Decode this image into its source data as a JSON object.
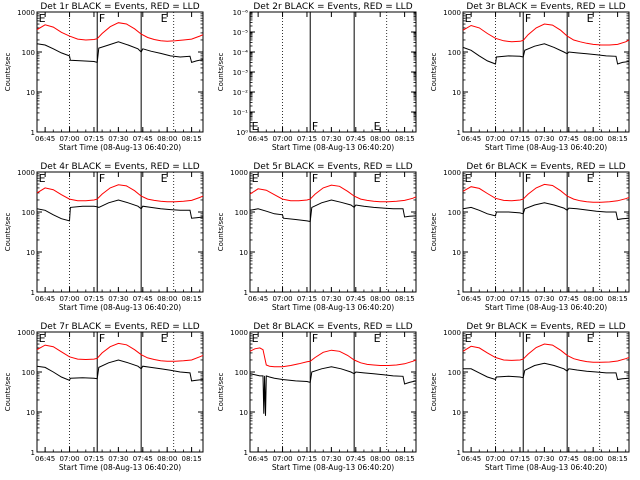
{
  "figure": {
    "xlabel_prefix": "Start Time",
    "start_time": "(08-Aug-13 06:40:20)",
    "x_ticks": [
      "06:45",
      "07:00",
      "07:15",
      "07:30",
      "07:45",
      "08:00",
      "08:15"
    ],
    "x_tick_minutes": [
      5,
      20,
      35,
      50,
      65,
      80,
      95
    ],
    "x_range_minutes": [
      0,
      102
    ],
    "ylabel": "Counts/sec",
    "dotted_minutes": [
      20,
      84
    ],
    "solid_minutes": [
      37,
      64
    ],
    "colors": {
      "events": "#000000",
      "lld": "#ff0000"
    }
  },
  "chart_data": [
    {
      "type": "line",
      "title": "Det 1r BLACK = Events, RED = LLD",
      "ylim": [
        1,
        1000
      ],
      "yscale": "log",
      "y_ticks": [
        "1",
        "10",
        "100",
        "1000"
      ],
      "markers": [
        {
          "label": "E",
          "minute": 1
        },
        {
          "label": "F",
          "minute": 38
        },
        {
          "label": "E",
          "minute": 76
        }
      ],
      "series": [
        {
          "name": "Events",
          "x": [
            0,
            5,
            10,
            15,
            20,
            20.5,
            28,
            35,
            37,
            38,
            44,
            50,
            56,
            62,
            64,
            65,
            70,
            76,
            82,
            88,
            94,
            95,
            98,
            102
          ],
          "y": [
            160,
            150,
            120,
            95,
            80,
            62,
            60,
            58,
            55,
            125,
            150,
            180,
            150,
            120,
            100,
            120,
            105,
            92,
            80,
            75,
            78,
            55,
            60,
            65
          ]
        },
        {
          "name": "LLD",
          "x": [
            0,
            5,
            10,
            15,
            20,
            25,
            30,
            35,
            37,
            40,
            45,
            50,
            55,
            60,
            64,
            68,
            72,
            76,
            80,
            85,
            90,
            95,
            100,
            102
          ],
          "y": [
            360,
            480,
            420,
            310,
            250,
            210,
            200,
            205,
            215,
            290,
            430,
            540,
            500,
            380,
            280,
            230,
            205,
            190,
            185,
            190,
            200,
            210,
            250,
            270
          ]
        }
      ]
    },
    {
      "type": "line",
      "title": "Det 2r BLACK = Events, RED = LLD",
      "ylim": [
        1,
        1e-06
      ],
      "yscale": "log",
      "y_ticks": [
        "10⁰",
        "10⁻¹",
        "10⁻²",
        "10⁻³",
        "10⁻⁴",
        "10⁻⁵",
        "10⁻⁶"
      ],
      "markers": [
        {
          "label": "E",
          "minute": 1
        },
        {
          "label": "F",
          "minute": 38
        },
        {
          "label": "E",
          "minute": 76
        }
      ],
      "series": []
    },
    {
      "type": "line",
      "title": "Det 3r BLACK = Events, RED = LLD",
      "ylim": [
        1,
        1000
      ],
      "yscale": "log",
      "y_ticks": [
        "1",
        "10",
        "100",
        "1000"
      ],
      "markers": [
        {
          "label": "E",
          "minute": 1
        },
        {
          "label": "F",
          "minute": 38
        },
        {
          "label": "E",
          "minute": 76
        }
      ],
      "series": [
        {
          "name": "Events",
          "x": [
            0,
            5,
            10,
            15,
            20,
            20.5,
            28,
            35,
            37,
            38,
            44,
            50,
            56,
            62,
            64,
            65,
            70,
            76,
            82,
            88,
            94,
            95,
            98,
            102
          ],
          "y": [
            130,
            110,
            80,
            60,
            50,
            75,
            80,
            78,
            75,
            110,
            140,
            160,
            130,
            100,
            90,
            100,
            95,
            90,
            85,
            80,
            78,
            50,
            55,
            58
          ]
        },
        {
          "name": "LLD",
          "x": [
            0,
            5,
            10,
            15,
            20,
            25,
            30,
            35,
            37,
            40,
            45,
            50,
            55,
            60,
            64,
            68,
            72,
            76,
            80,
            85,
            90,
            95,
            100,
            102
          ],
          "y": [
            350,
            460,
            400,
            290,
            220,
            190,
            180,
            185,
            195,
            270,
            400,
            500,
            470,
            350,
            250,
            200,
            180,
            165,
            155,
            150,
            150,
            155,
            180,
            200
          ]
        }
      ]
    },
    {
      "type": "line",
      "title": "Det 4r BLACK = Events, RED = LLD",
      "ylim": [
        1,
        1000
      ],
      "yscale": "log",
      "y_ticks": [
        "1",
        "10",
        "100",
        "1000"
      ],
      "markers": [
        {
          "label": "E",
          "minute": 1
        },
        {
          "label": "F",
          "minute": 38
        },
        {
          "label": "E",
          "minute": 76
        }
      ],
      "series": [
        {
          "name": "Events",
          "x": [
            0,
            5,
            10,
            15,
            20,
            20.5,
            28,
            35,
            37,
            38,
            44,
            50,
            56,
            62,
            64,
            65,
            70,
            76,
            82,
            88,
            94,
            95,
            98,
            102
          ],
          "y": [
            120,
            110,
            85,
            68,
            60,
            130,
            140,
            140,
            135,
            130,
            170,
            200,
            170,
            140,
            120,
            140,
            130,
            120,
            115,
            110,
            110,
            70,
            72,
            75
          ]
        },
        {
          "name": "LLD",
          "x": [
            0,
            5,
            10,
            15,
            20,
            25,
            30,
            35,
            37,
            40,
            45,
            50,
            55,
            60,
            64,
            68,
            72,
            76,
            80,
            85,
            90,
            95,
            100,
            102
          ],
          "y": [
            300,
            400,
            360,
            270,
            210,
            190,
            190,
            200,
            210,
            280,
            400,
            480,
            450,
            340,
            250,
            210,
            195,
            185,
            180,
            180,
            185,
            195,
            230,
            250
          ]
        }
      ]
    },
    {
      "type": "line",
      "title": "Det 5r BLACK = Events, RED = LLD",
      "ylim": [
        1,
        1000
      ],
      "yscale": "log",
      "y_ticks": [
        "1",
        "10",
        "100",
        "1000"
      ],
      "markers": [
        {
          "label": "E",
          "minute": 1
        },
        {
          "label": "F",
          "minute": 38
        },
        {
          "label": "E",
          "minute": 76
        }
      ],
      "series": [
        {
          "name": "Events",
          "x": [
            0,
            5,
            10,
            15,
            20,
            20.5,
            28,
            35,
            37,
            38,
            44,
            50,
            56,
            62,
            64,
            65,
            70,
            76,
            82,
            88,
            94,
            95,
            98,
            102
          ],
          "y": [
            110,
            120,
            105,
            90,
            85,
            70,
            65,
            60,
            58,
            130,
            170,
            200,
            175,
            150,
            130,
            150,
            140,
            130,
            125,
            120,
            120,
            75,
            78,
            80
          ]
        },
        {
          "name": "LLD",
          "x": [
            0,
            5,
            10,
            15,
            20,
            25,
            30,
            35,
            37,
            40,
            45,
            50,
            55,
            60,
            64,
            68,
            72,
            76,
            80,
            85,
            90,
            95,
            100,
            102
          ],
          "y": [
            280,
            380,
            350,
            270,
            210,
            190,
            190,
            200,
            210,
            280,
            400,
            470,
            440,
            330,
            250,
            210,
            195,
            185,
            180,
            180,
            185,
            195,
            220,
            240
          ]
        }
      ]
    },
    {
      "type": "line",
      "title": "Det 6r BLACK = Events, RED = LLD",
      "ylim": [
        1,
        1000
      ],
      "yscale": "log",
      "y_ticks": [
        "1",
        "10",
        "100",
        "1000"
      ],
      "markers": [
        {
          "label": "E",
          "minute": 1
        },
        {
          "label": "F",
          "minute": 38
        },
        {
          "label": "E",
          "minute": 76
        }
      ],
      "series": [
        {
          "name": "Events",
          "x": [
            0,
            5,
            10,
            15,
            20,
            20.5,
            28,
            35,
            37,
            38,
            44,
            50,
            56,
            62,
            64,
            65,
            70,
            76,
            82,
            88,
            94,
            95,
            98,
            102
          ],
          "y": [
            120,
            130,
            110,
            90,
            80,
            100,
            100,
            95,
            90,
            120,
            150,
            170,
            150,
            125,
            110,
            125,
            120,
            112,
            105,
            100,
            100,
            65,
            68,
            70
          ]
        },
        {
          "name": "LLD",
          "x": [
            0,
            5,
            10,
            15,
            20,
            25,
            30,
            35,
            37,
            40,
            45,
            50,
            55,
            60,
            64,
            68,
            72,
            76,
            80,
            85,
            90,
            95,
            100,
            102
          ],
          "y": [
            330,
            430,
            390,
            290,
            220,
            195,
            190,
            200,
            210,
            280,
            400,
            490,
            460,
            340,
            250,
            210,
            190,
            180,
            175,
            175,
            180,
            190,
            215,
            230
          ]
        }
      ]
    },
    {
      "type": "line",
      "title": "Det 7r BLACK = Events, RED = LLD",
      "ylim": [
        1,
        1000
      ],
      "yscale": "log",
      "y_ticks": [
        "1",
        "10",
        "100",
        "1000"
      ],
      "markers": [
        {
          "label": "E",
          "minute": 1
        },
        {
          "label": "F",
          "minute": 38
        },
        {
          "label": "E",
          "minute": 76
        }
      ],
      "series": [
        {
          "name": "Events",
          "x": [
            0,
            5,
            10,
            15,
            20,
            20.5,
            28,
            35,
            37,
            38,
            44,
            50,
            56,
            62,
            64,
            65,
            70,
            76,
            82,
            88,
            94,
            95,
            98,
            102
          ],
          "y": [
            140,
            130,
            100,
            75,
            62,
            70,
            72,
            70,
            68,
            130,
            170,
            200,
            170,
            140,
            120,
            140,
            130,
            120,
            110,
            100,
            95,
            60,
            62,
            65
          ]
        },
        {
          "name": "LLD",
          "x": [
            0,
            5,
            10,
            15,
            20,
            25,
            30,
            35,
            37,
            40,
            45,
            50,
            55,
            60,
            64,
            68,
            72,
            76,
            80,
            85,
            90,
            95,
            100,
            102
          ],
          "y": [
            360,
            470,
            430,
            320,
            240,
            210,
            205,
            210,
            220,
            300,
            430,
            520,
            480,
            360,
            270,
            225,
            205,
            190,
            185,
            185,
            190,
            200,
            240,
            260
          ]
        }
      ]
    },
    {
      "type": "line",
      "title": "Det 8r BLACK = Events, RED = LLD",
      "ylim": [
        1,
        1000
      ],
      "yscale": "log",
      "y_ticks": [
        "1",
        "10",
        "100",
        "1000"
      ],
      "markers": [
        {
          "label": "E",
          "minute": 1
        },
        {
          "label": "F",
          "minute": 38
        },
        {
          "label": "E",
          "minute": 76
        }
      ],
      "series": [
        {
          "name": "Events",
          "x": [
            0,
            3,
            6,
            8,
            8.5,
            9,
            9.5,
            10,
            12,
            15,
            20,
            28,
            35,
            37,
            38,
            44,
            50,
            56,
            62,
            64,
            65,
            70,
            76,
            82,
            88,
            94,
            95,
            98,
            102
          ],
          "y": [
            90,
            85,
            80,
            80,
            9,
            80,
            8,
            80,
            75,
            70,
            65,
            60,
            58,
            55,
            100,
            120,
            135,
            120,
            100,
            90,
            100,
            95,
            90,
            85,
            80,
            78,
            50,
            55,
            60
          ]
        },
        {
          "name": "LLD",
          "x": [
            0,
            3,
            6,
            8,
            10,
            12,
            15,
            20,
            25,
            30,
            35,
            37,
            40,
            45,
            50,
            55,
            60,
            64,
            68,
            72,
            76,
            80,
            85,
            90,
            95,
            100,
            102
          ],
          "y": [
            330,
            380,
            400,
            360,
            150,
            140,
            135,
            135,
            145,
            160,
            180,
            185,
            230,
            310,
            350,
            330,
            260,
            200,
            170,
            155,
            150,
            145,
            145,
            150,
            160,
            185,
            200
          ]
        }
      ]
    },
    {
      "type": "line",
      "title": "Det 9r BLACK = Events, RED = LLD",
      "ylim": [
        1,
        1000
      ],
      "yscale": "log",
      "y_ticks": [
        "1",
        "10",
        "100",
        "1000"
      ],
      "markers": [
        {
          "label": "E",
          "minute": 1
        },
        {
          "label": "F",
          "minute": 38
        },
        {
          "label": "E",
          "minute": 76
        }
      ],
      "series": [
        {
          "name": "Events",
          "x": [
            0,
            5,
            10,
            15,
            20,
            20.5,
            28,
            35,
            37,
            38,
            44,
            50,
            56,
            62,
            64,
            65,
            70,
            76,
            82,
            88,
            94,
            95,
            98,
            102
          ],
          "y": [
            120,
            120,
            95,
            75,
            65,
            75,
            78,
            75,
            72,
            110,
            145,
            165,
            145,
            120,
            105,
            120,
            112,
            105,
            100,
            95,
            95,
            65,
            68,
            70
          ]
        },
        {
          "name": "LLD",
          "x": [
            0,
            5,
            10,
            15,
            20,
            25,
            30,
            35,
            37,
            40,
            45,
            50,
            55,
            60,
            64,
            68,
            72,
            76,
            80,
            85,
            90,
            95,
            100,
            102
          ],
          "y": [
            330,
            440,
            400,
            300,
            230,
            200,
            195,
            200,
            210,
            280,
            410,
            500,
            470,
            350,
            260,
            215,
            195,
            182,
            175,
            175,
            178,
            188,
            215,
            230
          ]
        }
      ]
    }
  ]
}
